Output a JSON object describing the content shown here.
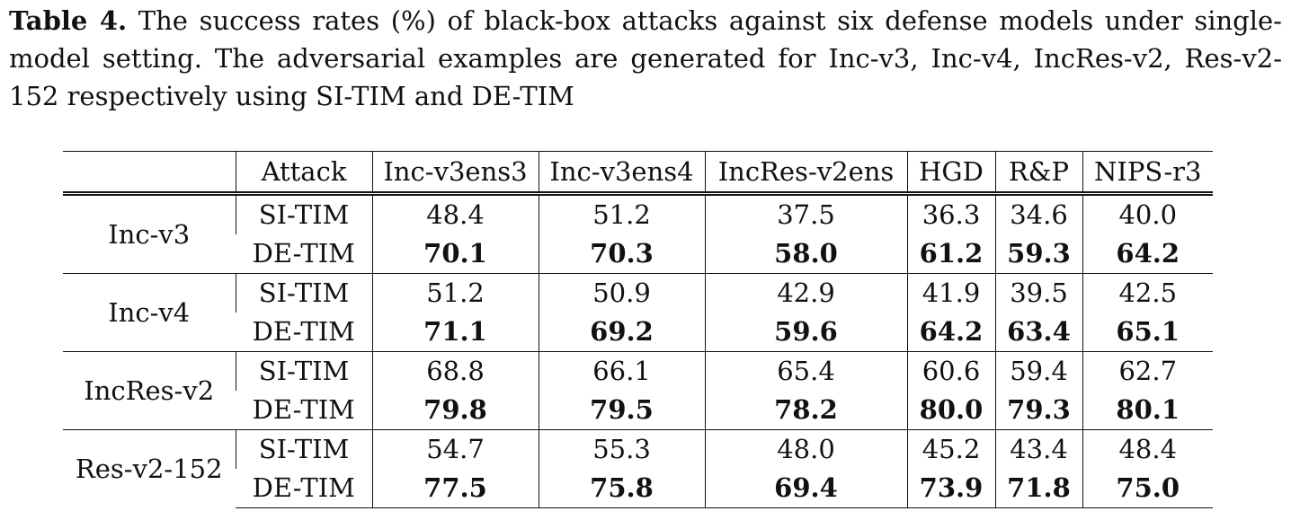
{
  "caption": {
    "label": "Table 4.",
    "text": " The success rates (%) of black-box attacks against six defense models under single-model setting. The adversarial examples are generated for Inc-v3, Inc-v4, IncRes-v2, Res-v2-152 respectively using SI-TIM and DE-TIM"
  },
  "table": {
    "headers": [
      "",
      "Attack",
      "Inc-v3ens3",
      "Inc-v3ens4",
      "IncRes-v2ens",
      "HGD",
      "R&P",
      "NIPS-r3"
    ],
    "groups": [
      {
        "model": "Inc-v3",
        "rows": [
          {
            "attack": "SI-TIM",
            "values": [
              "48.4",
              "51.2",
              "37.5",
              "36.3",
              "34.6",
              "40.0"
            ]
          },
          {
            "attack": "DE-TIM",
            "values": [
              "70.1",
              "70.3",
              "58.0",
              "61.2",
              "59.3",
              "64.2"
            ]
          }
        ]
      },
      {
        "model": "Inc-v4",
        "rows": [
          {
            "attack": "SI-TIM",
            "values": [
              "51.2",
              "50.9",
              "42.9",
              "41.9",
              "39.5",
              "42.5"
            ]
          },
          {
            "attack": "DE-TIM",
            "values": [
              "71.1",
              "69.2",
              "59.6",
              "64.2",
              "63.4",
              "65.1"
            ]
          }
        ]
      },
      {
        "model": "IncRes-v2",
        "rows": [
          {
            "attack": "SI-TIM",
            "values": [
              "68.8",
              "66.1",
              "65.4",
              "60.6",
              "59.4",
              "62.7"
            ]
          },
          {
            "attack": "DE-TIM",
            "values": [
              "79.8",
              "79.5",
              "78.2",
              "80.0",
              "79.3",
              "80.1"
            ]
          }
        ]
      },
      {
        "model": "Res-v2-152",
        "rows": [
          {
            "attack": "SI-TIM",
            "values": [
              "54.7",
              "55.3",
              "48.0",
              "45.2",
              "43.4",
              "48.4"
            ]
          },
          {
            "attack": "DE-TIM",
            "values": [
              "77.5",
              "75.8",
              "69.4",
              "73.9",
              "71.8",
              "75.0"
            ]
          }
        ]
      }
    ]
  }
}
